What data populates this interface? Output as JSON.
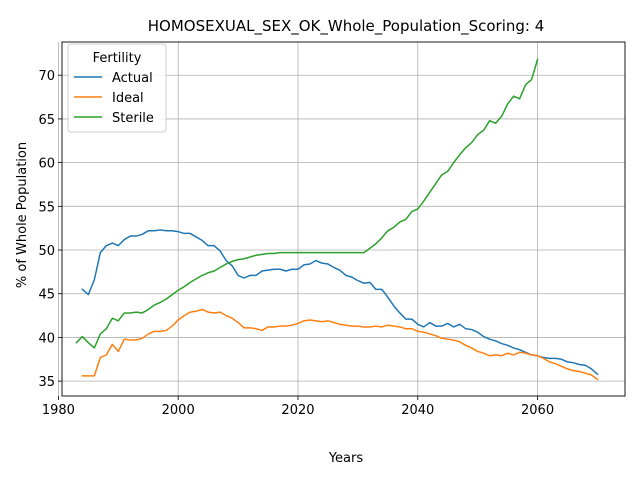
{
  "chart_data": {
    "type": "line",
    "title": "HOMOSEXUAL_SEX_OK_Whole_Population_Scoring: 4",
    "xlabel": "Years",
    "ylabel": "% of Whole Population",
    "xlim": [
      1980.6,
      2074.6
    ],
    "ylim": [
      33.3,
      73.8
    ],
    "xticks": [
      1980,
      2000,
      2020,
      2040,
      2060
    ],
    "yticks": [
      35,
      40,
      45,
      50,
      55,
      60,
      65,
      70
    ],
    "grid": true,
    "legend": {
      "title": "Fertility",
      "placement": "top-left"
    },
    "series": [
      {
        "name": "Actual",
        "color": "#1f77b4",
        "x": [
          1984,
          1985,
          1986,
          1987,
          1988,
          1989,
          1990,
          1991,
          1992,
          1993,
          1994,
          1995,
          1996,
          1997,
          1998,
          1999,
          2000,
          2001,
          2002,
          2003,
          2004,
          2005,
          2006,
          2007,
          2008,
          2009,
          2010,
          2011,
          2012,
          2013,
          2014,
          2015,
          2016,
          2017,
          2018,
          2019,
          2020,
          2021,
          2022,
          2023,
          2024,
          2025,
          2026,
          2027,
          2028,
          2029,
          2030,
          2031,
          2032,
          2033,
          2034,
          2035,
          2036,
          2037,
          2038,
          2039,
          2040,
          2041,
          2042,
          2043,
          2044,
          2045,
          2046,
          2047,
          2048,
          2049,
          2050,
          2051,
          2052,
          2053,
          2054,
          2055,
          2056,
          2057,
          2058,
          2059,
          2060,
          2061,
          2062,
          2063,
          2064,
          2065,
          2066,
          2067,
          2068,
          2069,
          2070
        ],
        "values": [
          45.5,
          44.9,
          46.6,
          49.7,
          50.5,
          50.8,
          50.5,
          51.2,
          51.6,
          51.6,
          51.8,
          52.2,
          52.2,
          52.3,
          52.2,
          52.2,
          52.1,
          51.9,
          51.9,
          51.5,
          51.1,
          50.5,
          50.5,
          49.9,
          48.8,
          48.2,
          47.1,
          46.8,
          47.1,
          47.1,
          47.6,
          47.7,
          47.8,
          47.8,
          47.6,
          47.8,
          47.8,
          48.3,
          48.4,
          48.8,
          48.5,
          48.4,
          48.0,
          47.7,
          47.1,
          46.9,
          46.5,
          46.2,
          46.3,
          45.5,
          45.5,
          44.6,
          43.6,
          42.8,
          42.1,
          42.1,
          41.5,
          41.2,
          41.7,
          41.3,
          41.3,
          41.6,
          41.2,
          41.5,
          41.0,
          40.9,
          40.6,
          40.1,
          39.8,
          39.6,
          39.3,
          39.1,
          38.8,
          38.6,
          38.3,
          38.0,
          37.9,
          37.7,
          37.6,
          37.6,
          37.5,
          37.2,
          37.1,
          36.9,
          36.8,
          36.4,
          35.8
        ]
      },
      {
        "name": "Ideal",
        "color": "#ff7f0e",
        "x": [
          1984,
          1985,
          1986,
          1987,
          1988,
          1989,
          1990,
          1991,
          1992,
          1993,
          1994,
          1995,
          1996,
          1997,
          1998,
          1999,
          2000,
          2001,
          2002,
          2003,
          2004,
          2005,
          2006,
          2007,
          2008,
          2009,
          2010,
          2011,
          2012,
          2013,
          2014,
          2015,
          2016,
          2017,
          2018,
          2019,
          2020,
          2021,
          2022,
          2023,
          2024,
          2025,
          2026,
          2027,
          2028,
          2029,
          2030,
          2031,
          2032,
          2033,
          2034,
          2035,
          2036,
          2037,
          2038,
          2039,
          2040,
          2041,
          2042,
          2043,
          2044,
          2045,
          2046,
          2047,
          2048,
          2049,
          2050,
          2051,
          2052,
          2053,
          2054,
          2055,
          2056,
          2057,
          2058,
          2059,
          2060,
          2061,
          2062,
          2063,
          2064,
          2065,
          2066,
          2067,
          2068,
          2069,
          2070
        ],
        "values": [
          35.6,
          35.6,
          35.6,
          37.7,
          38.0,
          39.2,
          38.4,
          39.8,
          39.7,
          39.7,
          39.9,
          40.4,
          40.7,
          40.7,
          40.8,
          41.3,
          42.0,
          42.5,
          42.9,
          43.0,
          43.2,
          42.9,
          42.8,
          42.9,
          42.5,
          42.2,
          41.7,
          41.1,
          41.1,
          41.0,
          40.8,
          41.2,
          41.2,
          41.3,
          41.3,
          41.4,
          41.6,
          41.9,
          42.0,
          41.9,
          41.8,
          41.9,
          41.7,
          41.5,
          41.4,
          41.3,
          41.3,
          41.2,
          41.2,
          41.3,
          41.2,
          41.4,
          41.3,
          41.2,
          41.0,
          41.0,
          40.7,
          40.6,
          40.4,
          40.2,
          39.9,
          39.8,
          39.7,
          39.5,
          39.1,
          38.8,
          38.4,
          38.2,
          37.9,
          38.0,
          37.9,
          38.2,
          38.0,
          38.3,
          38.2,
          38.0,
          37.9,
          37.6,
          37.2,
          37.0,
          36.7,
          36.4,
          36.2,
          36.1,
          35.9,
          35.7,
          35.2
        ]
      },
      {
        "name": "Sterile",
        "color": "#2ca02c",
        "x": [
          1983,
          1984,
          1985,
          1986,
          1987,
          1988,
          1989,
          1990,
          1991,
          1992,
          1993,
          1994,
          1995,
          1996,
          1997,
          1998,
          1999,
          2000,
          2001,
          2002,
          2003,
          2004,
          2005,
          2006,
          2007,
          2008,
          2009,
          2010,
          2011,
          2012,
          2013,
          2014,
          2015,
          2016,
          2017,
          2018,
          2019,
          2020,
          2021,
          2022,
          2023,
          2024,
          2025,
          2026,
          2027,
          2028,
          2029,
          2030,
          2031,
          2032,
          2033,
          2034,
          2035,
          2036,
          2037,
          2038,
          2039,
          2040,
          2041,
          2042,
          2043,
          2044,
          2045,
          2046,
          2047,
          2048,
          2049,
          2050,
          2051,
          2052,
          2053,
          2054,
          2055,
          2056,
          2057,
          2058,
          2059,
          2060
        ],
        "values": [
          39.4,
          40.1,
          39.4,
          38.8,
          40.4,
          41.0,
          42.2,
          41.9,
          42.8,
          42.8,
          42.9,
          42.8,
          43.2,
          43.7,
          44.0,
          44.4,
          44.9,
          45.4,
          45.8,
          46.3,
          46.7,
          47.1,
          47.4,
          47.6,
          48.0,
          48.4,
          48.7,
          48.9,
          49.0,
          49.2,
          49.4,
          49.5,
          49.6,
          49.6,
          49.7,
          49.7,
          49.7,
          49.7,
          49.7,
          49.7,
          49.7,
          49.7,
          49.7,
          49.7,
          49.7,
          49.7,
          49.7,
          49.7,
          49.7,
          50.2,
          50.7,
          51.4,
          52.2,
          52.6,
          53.2,
          53.5,
          54.4,
          54.7,
          55.6,
          56.6,
          57.6,
          58.6,
          59.0,
          60.0,
          60.9,
          61.7,
          62.3,
          63.2,
          63.7,
          64.8,
          64.5,
          65.3,
          66.7,
          67.6,
          67.3,
          68.9,
          69.5,
          71.8
        ]
      }
    ]
  }
}
